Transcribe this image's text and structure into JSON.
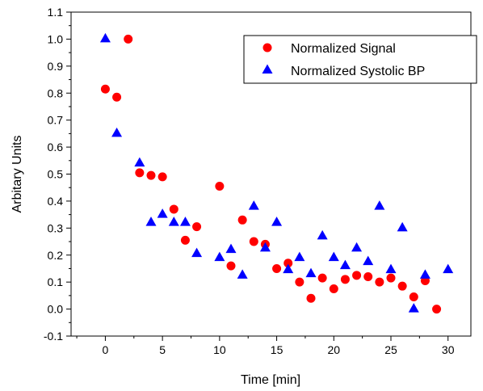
{
  "chart_data": {
    "type": "scatter",
    "xlabel": "Time [min]",
    "ylabel": "Arbitary Units",
    "xlim": [
      -3,
      32
    ],
    "ylim": [
      -0.1,
      1.1
    ],
    "x_ticks": [
      0,
      5,
      10,
      15,
      20,
      25,
      30
    ],
    "y_ticks": [
      -0.1,
      0.0,
      0.1,
      0.2,
      0.3,
      0.4,
      0.5,
      0.6,
      0.7,
      0.8,
      0.9,
      1.0,
      1.1
    ],
    "x_tick_labels": [
      "0",
      "5",
      "10",
      "15",
      "20",
      "25",
      "30"
    ],
    "y_tick_labels": [
      "-0.1",
      "0.0",
      "0.1",
      "0.2",
      "0.3",
      "0.4",
      "0.5",
      "0.6",
      "0.7",
      "0.8",
      "0.9",
      "1.0",
      "1.1"
    ],
    "grid": false,
    "legend_position": "top-right",
    "series": [
      {
        "name": "Normalized Signal",
        "marker": "circle",
        "color": "#ff0000",
        "points": [
          [
            0,
            0.815
          ],
          [
            1,
            0.785
          ],
          [
            2,
            1.0
          ],
          [
            3,
            0.505
          ],
          [
            4,
            0.495
          ],
          [
            5,
            0.49
          ],
          [
            6,
            0.37
          ],
          [
            7,
            0.255
          ],
          [
            8,
            0.305
          ],
          [
            10,
            0.455
          ],
          [
            11,
            0.16
          ],
          [
            12,
            0.33
          ],
          [
            13,
            0.25
          ],
          [
            14,
            0.24
          ],
          [
            15,
            0.15
          ],
          [
            16,
            0.17
          ],
          [
            17,
            0.1
          ],
          [
            18,
            0.04
          ],
          [
            19,
            0.115
          ],
          [
            20,
            0.075
          ],
          [
            21,
            0.11
          ],
          [
            22,
            0.125
          ],
          [
            23,
            0.12
          ],
          [
            24,
            0.1
          ],
          [
            25,
            0.115
          ],
          [
            26,
            0.085
          ],
          [
            27,
            0.045
          ],
          [
            28,
            0.105
          ],
          [
            29,
            0.0
          ]
        ]
      },
      {
        "name": "Normalized Systolic BP",
        "marker": "triangle",
        "color": "#0000ff",
        "points": [
          [
            0,
            1.0
          ],
          [
            1,
            0.65
          ],
          [
            3,
            0.54
          ],
          [
            4,
            0.32
          ],
          [
            5,
            0.35
          ],
          [
            6,
            0.32
          ],
          [
            7,
            0.32
          ],
          [
            8,
            0.205
          ],
          [
            10,
            0.19
          ],
          [
            11,
            0.22
          ],
          [
            12,
            0.125
          ],
          [
            13,
            0.38
          ],
          [
            14,
            0.225
          ],
          [
            15,
            0.32
          ],
          [
            16,
            0.145
          ],
          [
            17,
            0.19
          ],
          [
            18,
            0.13
          ],
          [
            19,
            0.27
          ],
          [
            20,
            0.19
          ],
          [
            21,
            0.16
          ],
          [
            22,
            0.225
          ],
          [
            23,
            0.175
          ],
          [
            24,
            0.38
          ],
          [
            25,
            0.145
          ],
          [
            26,
            0.3
          ],
          [
            27,
            0.0
          ],
          [
            28,
            0.125
          ],
          [
            30,
            0.145
          ]
        ]
      }
    ]
  }
}
